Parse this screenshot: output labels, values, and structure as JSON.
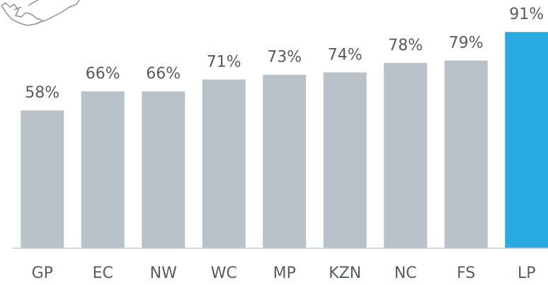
{
  "chart_data": {
    "type": "bar",
    "categories": [
      "GP",
      "EC",
      "NW",
      "WC",
      "MP",
      "KZN",
      "NC",
      "FS",
      "LP"
    ],
    "values": [
      58,
      66,
      66,
      71,
      73,
      74,
      78,
      79,
      91
    ],
    "value_labels": [
      "58%",
      "66%",
      "66%",
      "71%",
      "73%",
      "74%",
      "78%",
      "79%",
      "91%"
    ],
    "colors": [
      "#b8c2c8",
      "#b8c2c8",
      "#b8c2c8",
      "#b8c2c8",
      "#b8c2c8",
      "#b8c2c8",
      "#b8c2c8",
      "#b8c2c8",
      "#29abe2"
    ],
    "ylim": [
      0,
      100
    ]
  }
}
